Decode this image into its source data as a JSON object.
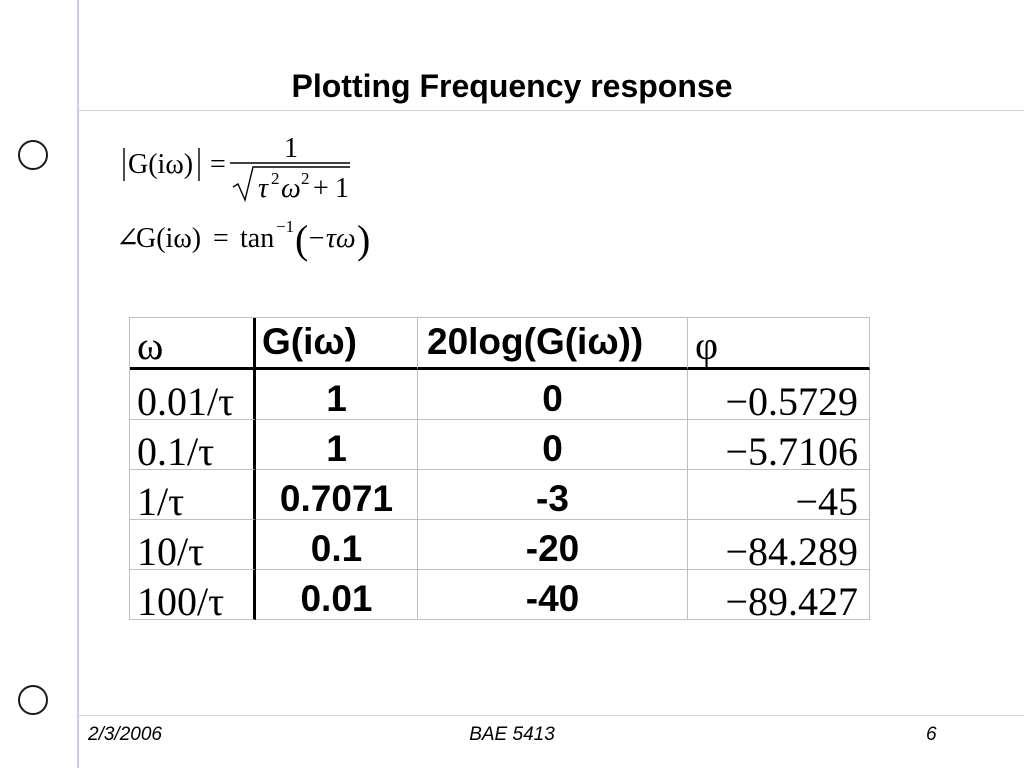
{
  "slide": {
    "title": "Plotting Frequency response"
  },
  "formulas": {
    "magnitude": {
      "lhs": "G(iω)",
      "equals": "=",
      "numerator": "1",
      "tau": "τ",
      "tau_exp": "2",
      "omega": "ω",
      "omega_exp": "2",
      "plus": "+",
      "one": "1"
    },
    "phase": {
      "angle": "∠",
      "lhs": "G(iω)",
      "equals": "=",
      "func": "tan",
      "func_exp": "−1",
      "lparen": "(",
      "arg": "−τω",
      "rparen": ")"
    }
  },
  "table": {
    "headers": {
      "omega": "ω",
      "gain": "G(iω)",
      "gain_db": "20log(G(iω))",
      "phase": "φ"
    },
    "rows": [
      {
        "omega": "0.01/τ",
        "gain": "1",
        "gain_db": "0",
        "phase": "−0.5729"
      },
      {
        "omega": "0.1/τ",
        "gain": "1",
        "gain_db": "0",
        "phase": "−5.7106"
      },
      {
        "omega": "1/τ",
        "gain": "0.7071",
        "gain_db": "-3",
        "phase": "−45"
      },
      {
        "omega": "10/τ",
        "gain": "0.1",
        "gain_db": "-20",
        "phase": "−84.289"
      },
      {
        "omega": "100/τ",
        "gain": "0.01",
        "gain_db": "-40",
        "phase": "−89.427"
      }
    ]
  },
  "footer": {
    "date": "2/3/2006",
    "course": "BAE 5413",
    "page_number": "6"
  },
  "colors": {
    "margin_rule": "#c9c9f2",
    "grid_line": "#c0c0c0",
    "emphasis_border": "#000000",
    "text": "#000000"
  }
}
